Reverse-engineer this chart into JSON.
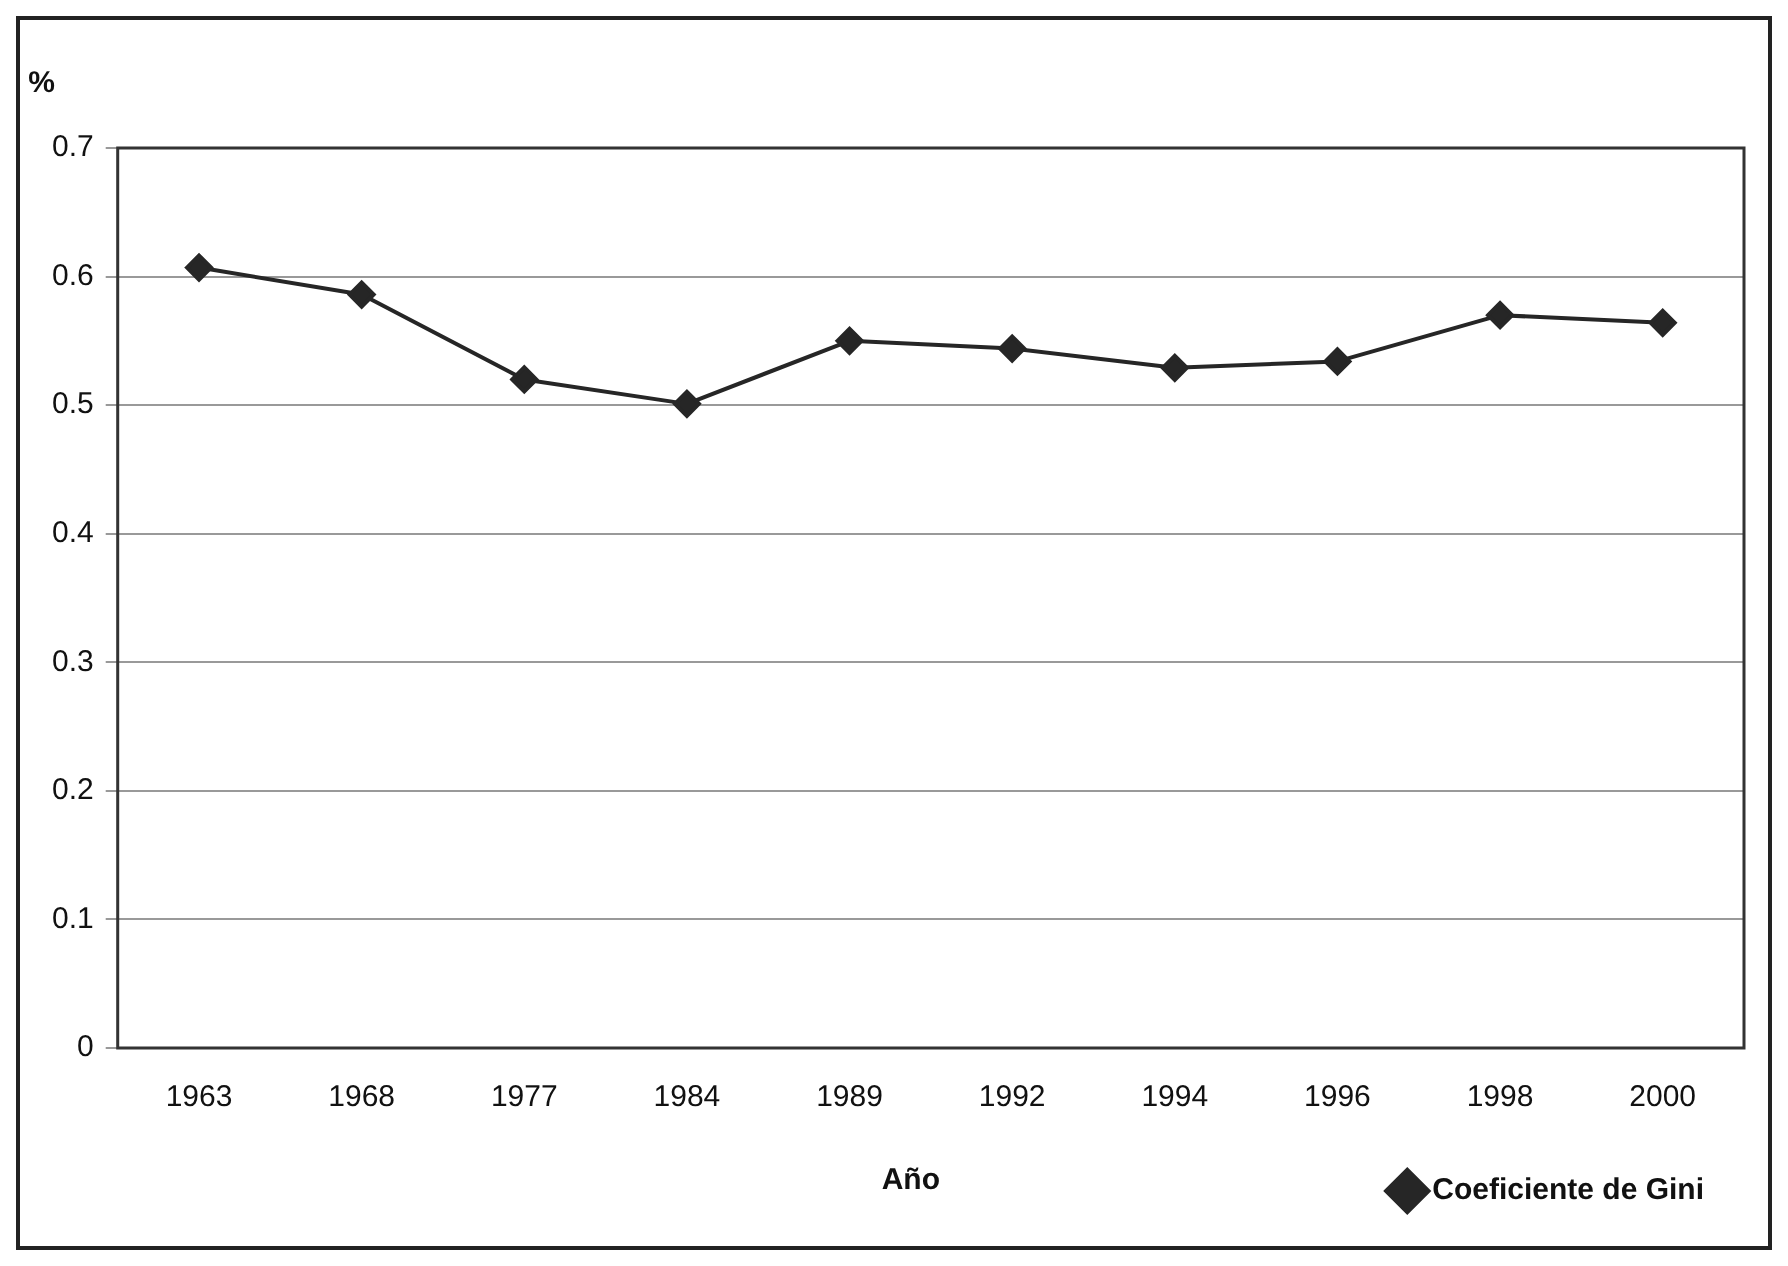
{
  "chart_data": {
    "type": "line",
    "ylabel": "%",
    "xlabel": "Año",
    "categories": [
      "1963",
      "1968",
      "1977",
      "1984",
      "1989",
      "1992",
      "1994",
      "1996",
      "1998",
      "2000"
    ],
    "series": [
      {
        "name": "Coeficiente de Gini",
        "color": "#262626",
        "values": [
          0.607,
          0.586,
          0.52,
          0.501,
          0.55,
          0.544,
          0.529,
          0.534,
          0.57,
          0.564
        ]
      }
    ],
    "ylim": [
      0,
      0.7
    ],
    "yticks": [
      0,
      0.1,
      0.2,
      0.3,
      0.4,
      0.5,
      0.6,
      0.7
    ],
    "grid": "y",
    "legend": "bottom right",
    "marker": "diamond",
    "line_style": "solid"
  }
}
